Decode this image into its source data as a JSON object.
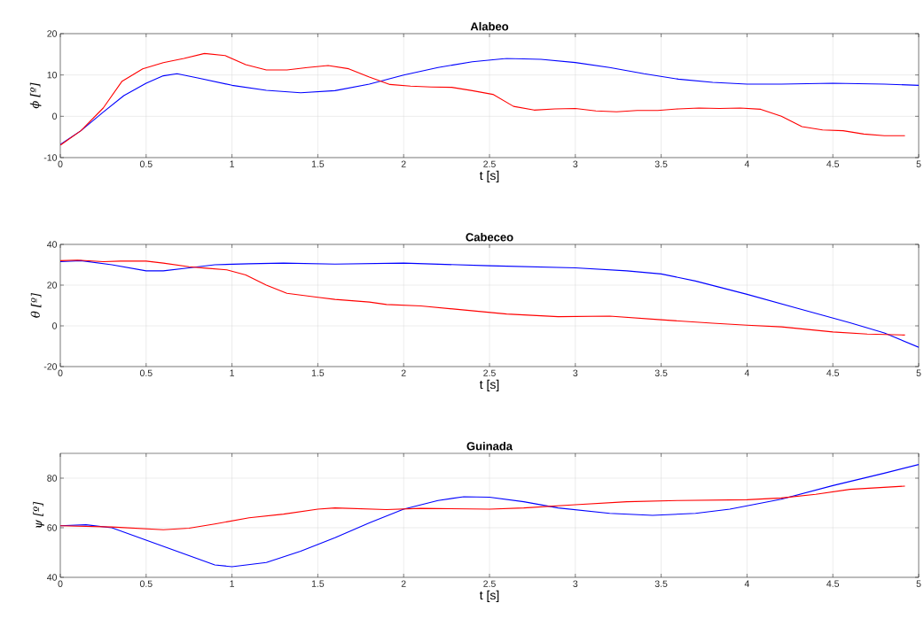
{
  "chart_data": [
    {
      "type": "line",
      "title": "Alabeo",
      "xlabel": "t [s]",
      "ylabel": "ϕ [º]",
      "xlim": [
        0,
        5
      ],
      "ylim": [
        -10,
        20
      ],
      "xticks": [
        0,
        0.5,
        1,
        1.5,
        2,
        2.5,
        3,
        3.5,
        4,
        4.5,
        5
      ],
      "yticks": [
        -10,
        0,
        10,
        20
      ],
      "grid": true,
      "series": [
        {
          "color": "#0000ff",
          "x": [
            0,
            0.12,
            0.25,
            0.37,
            0.5,
            0.6,
            0.68,
            0.8,
            1.0,
            1.2,
            1.4,
            1.6,
            1.8,
            2.0,
            2.2,
            2.4,
            2.6,
            2.8,
            3.0,
            3.2,
            3.4,
            3.6,
            3.8,
            4.0,
            4.2,
            4.5,
            4.8,
            5.0
          ],
          "values": [
            -6.8,
            -3.5,
            1,
            5,
            8,
            9.8,
            10.3,
            9.3,
            7.5,
            6.3,
            5.7,
            6.2,
            7.8,
            10,
            11.8,
            13.2,
            14,
            13.8,
            13,
            11.8,
            10.3,
            9,
            8.2,
            7.8,
            7.8,
            8,
            7.8,
            7.5
          ]
        },
        {
          "color": "#ff0000",
          "x": [
            0,
            0.12,
            0.25,
            0.36,
            0.48,
            0.6,
            0.72,
            0.84,
            0.96,
            1.08,
            1.2,
            1.32,
            1.44,
            1.56,
            1.68,
            1.8,
            1.92,
            2.04,
            2.16,
            2.28,
            2.4,
            2.52,
            2.64,
            2.76,
            2.88,
            3.0,
            3.12,
            3.24,
            3.36,
            3.48,
            3.6,
            3.72,
            3.84,
            3.96,
            4.08,
            4.2,
            4.32,
            4.44,
            4.56,
            4.68,
            4.8,
            4.92
          ],
          "values": [
            -7,
            -3.5,
            2,
            8.5,
            11.5,
            13,
            14,
            15.2,
            14.7,
            12.5,
            11.2,
            11.2,
            11.8,
            12.3,
            11.5,
            9.5,
            7.7,
            7.3,
            7.1,
            7.0,
            6.2,
            5.3,
            2.4,
            1.5,
            1.8,
            1.9,
            1.3,
            1.1,
            1.4,
            1.4,
            1.8,
            2.0,
            1.9,
            2.0,
            1.7,
            0,
            -2.5,
            -3.3,
            -3.5,
            -4.3,
            -4.7,
            -4.7
          ]
        }
      ]
    },
    {
      "type": "line",
      "title": "Cabeceo",
      "xlabel": "t [s]",
      "ylabel": "θ [º]",
      "xlim": [
        0,
        5
      ],
      "ylim": [
        -20,
        40
      ],
      "xticks": [
        0,
        0.5,
        1,
        1.5,
        2,
        2.5,
        3,
        3.5,
        4,
        4.5,
        5
      ],
      "yticks": [
        -20,
        0,
        20,
        40
      ],
      "grid": true,
      "series": [
        {
          "color": "#0000ff",
          "x": [
            0,
            0.12,
            0.3,
            0.5,
            0.6,
            0.75,
            0.9,
            1.1,
            1.3,
            1.6,
            2.0,
            2.5,
            3.0,
            3.3,
            3.5,
            3.7,
            4.0,
            4.3,
            4.6,
            4.8,
            5.0
          ],
          "values": [
            31.5,
            32,
            30,
            27,
            27,
            28.5,
            30,
            30.5,
            30.8,
            30.3,
            30.8,
            29.5,
            28.5,
            27,
            25.5,
            22,
            15.5,
            8.5,
            1.5,
            -3.5,
            -10.5
          ]
        },
        {
          "color": "#ff0000",
          "x": [
            0,
            0.1,
            0.25,
            0.35,
            0.5,
            0.6,
            0.75,
            0.85,
            0.97,
            1.08,
            1.2,
            1.32,
            1.5,
            1.6,
            1.8,
            1.9,
            2.1,
            2.3,
            2.6,
            2.9,
            3.2,
            3.5,
            3.8,
            4.0,
            4.2,
            4.5,
            4.7,
            4.92
          ],
          "values": [
            32,
            32.3,
            31.5,
            31.8,
            31.8,
            30.8,
            29,
            28.3,
            27.5,
            25,
            20,
            16,
            14,
            13,
            11.7,
            10.5,
            9.8,
            8.2,
            5.8,
            4.5,
            4.8,
            3,
            1.3,
            0.3,
            -0.5,
            -3,
            -4,
            -4.5
          ]
        }
      ]
    },
    {
      "type": "line",
      "title": "Guinada",
      "xlabel": "t [s]",
      "ylabel": "ψ [º]",
      "xlim": [
        0,
        5
      ],
      "ylim": [
        40,
        90
      ],
      "xticks": [
        0,
        0.5,
        1,
        1.5,
        2,
        2.5,
        3,
        3.5,
        4,
        4.5,
        5
      ],
      "yticks": [
        40,
        60,
        80
      ],
      "grid": true,
      "series": [
        {
          "color": "#0000ff",
          "x": [
            0,
            0.15,
            0.3,
            0.5,
            0.7,
            0.9,
            1.0,
            1.2,
            1.4,
            1.6,
            1.8,
            2.0,
            2.2,
            2.35,
            2.5,
            2.7,
            2.9,
            3.2,
            3.45,
            3.7,
            3.9,
            4.2,
            4.5,
            4.8,
            5.0
          ],
          "values": [
            60.8,
            61.2,
            60,
            55,
            50,
            45,
            44.3,
            46,
            50.5,
            56,
            62,
            67.5,
            71,
            72.5,
            72.3,
            70.5,
            68,
            65.8,
            65,
            65.8,
            67.5,
            71.5,
            77,
            82,
            85.5
          ]
        },
        {
          "color": "#ff0000",
          "x": [
            0,
            0.3,
            0.6,
            0.75,
            0.9,
            1.1,
            1.3,
            1.5,
            1.6,
            1.9,
            2.1,
            2.5,
            2.7,
            3.0,
            3.3,
            3.6,
            4.0,
            4.2,
            4.4,
            4.6,
            4.92
          ],
          "values": [
            60.8,
            60.3,
            59.2,
            59.8,
            61.5,
            64,
            65.5,
            67.5,
            68,
            67.3,
            67.8,
            67.5,
            68,
            69.3,
            70.5,
            71,
            71.3,
            72,
            73.5,
            75.5,
            76.8
          ]
        }
      ]
    }
  ]
}
